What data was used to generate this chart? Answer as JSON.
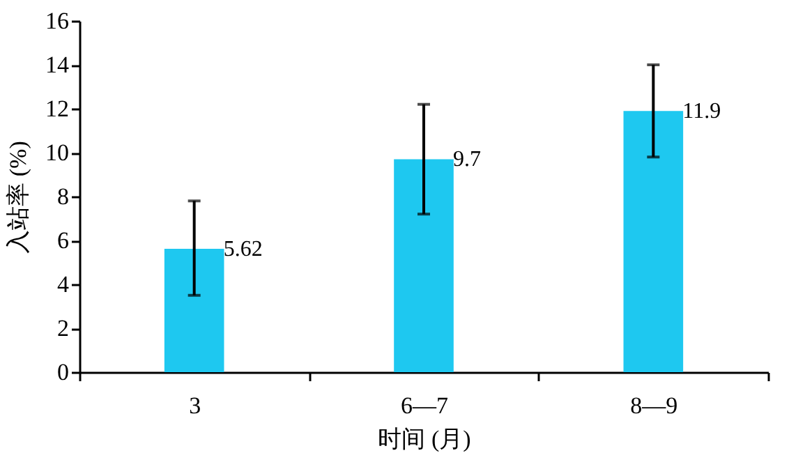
{
  "chart_data": {
    "type": "bar",
    "xlabel": "时间 (月)",
    "ylabel": "入站率 (%)",
    "categories": [
      "3",
      "6—7",
      "8—9"
    ],
    "values": [
      5.62,
      9.7,
      11.9
    ],
    "color": "#1ec8f0",
    "errors": [
      [
        3.5,
        7.8
      ],
      [
        7.2,
        12.2
      ],
      [
        9.8,
        14.0
      ]
    ],
    "data_labels": true,
    "ylim": [
      0,
      16
    ],
    "yticks": [
      0,
      2,
      4,
      6,
      8,
      10,
      12,
      14,
      16
    ],
    "grid": false
  }
}
